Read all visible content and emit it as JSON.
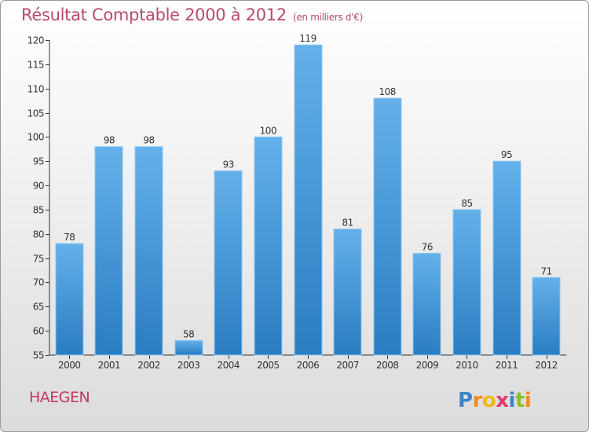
{
  "title": {
    "main": "Résultat Comptable 2000 à 2012",
    "unit": "(en milliers d'€)"
  },
  "city": "HAEGEN",
  "logo_text": "Proxiti",
  "colors": {
    "bar_top": "#64b0ea",
    "bar_bottom": "#2a7dc2",
    "title": "#b84a6b",
    "city": "#c0385f"
  },
  "chart_data": {
    "type": "bar",
    "title": "Résultat Comptable 2000 à 2012",
    "subtitle": "(en milliers d'€)",
    "xlabel": "",
    "ylabel": "",
    "categories": [
      "2000",
      "2001",
      "2002",
      "2003",
      "2004",
      "2005",
      "2006",
      "2007",
      "2008",
      "2009",
      "2010",
      "2011",
      "2012"
    ],
    "values": [
      78,
      98,
      98,
      58,
      93,
      100,
      119,
      81,
      108,
      76,
      85,
      95,
      71
    ],
    "ylim": [
      55,
      120
    ],
    "yticks": [
      55,
      60,
      65,
      70,
      75,
      80,
      85,
      90,
      95,
      100,
      105,
      110,
      115,
      120
    ],
    "grid": false,
    "data_labels": true
  }
}
